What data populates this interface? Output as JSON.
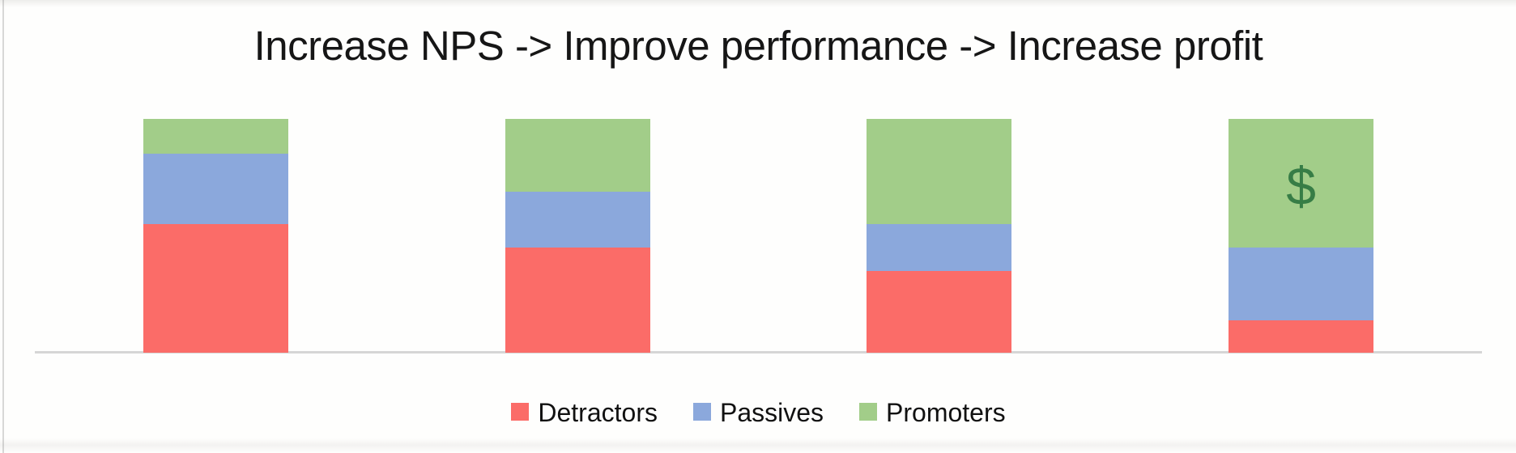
{
  "title": {
    "text": "Increase NPS -> Improve performance -> Increase profit",
    "color": "#161616"
  },
  "chart_data": {
    "type": "bar",
    "stacking": "percent",
    "title": "Increase NPS -> Improve performance -> Increase profit",
    "categories": [
      "",
      "",
      "",
      ""
    ],
    "series": [
      {
        "name": "Detractors",
        "color": "#fb6c68",
        "values": [
          55,
          45,
          35,
          14
        ]
      },
      {
        "name": "Passives",
        "color": "#8ba8dc",
        "values": [
          30,
          24,
          20,
          31
        ]
      },
      {
        "name": "Promoters",
        "color": "#a2cd89",
        "values": [
          15,
          31,
          45,
          55
        ]
      }
    ],
    "ylim": [
      0,
      100
    ],
    "grid": false,
    "x_axis_labels_visible": false,
    "y_axis_labels_visible": false,
    "axis_line_color": "#d6d6d6",
    "legend_position": "bottom",
    "annotations": [
      {
        "text": "$",
        "bar_index": 3,
        "series": "Promoters",
        "color": "#377d46"
      }
    ]
  }
}
